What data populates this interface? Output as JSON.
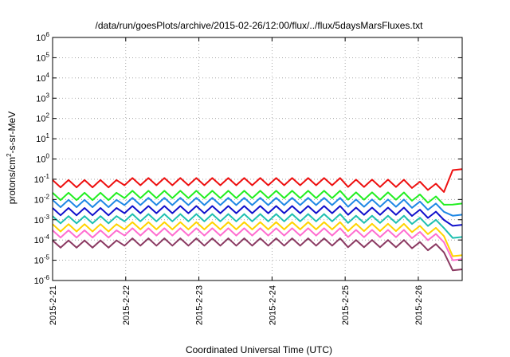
{
  "chart_data": {
    "type": "line",
    "title": "/data/run/goesPlots/archive/2015-02-26/12:00/flux/../flux/5daysMarsFluxes.txt",
    "xlabel": "Coordinated Universal Time (UTC)",
    "ylabel_prefix": "protons/cm",
    "ylabel_sup": "2",
    "ylabel_suffix": "-s-sr-MeV",
    "x_tick_labels": [
      "2015-2-21",
      "2015-2-22",
      "2015-2-23",
      "2015-2-24",
      "2015-2-25",
      "2015-2-26"
    ],
    "y_tick_exponents": [
      -6,
      -5,
      -4,
      -3,
      -2,
      -1,
      0,
      1,
      2,
      3,
      4,
      5,
      6
    ],
    "y_tick_base": "10",
    "xlim_days": [
      0,
      5.6
    ],
    "ylim_log10": [
      -6,
      6
    ],
    "grid": true,
    "x_scale": "linear",
    "y_scale": "log",
    "series": [
      {
        "color": "#ee1111",
        "base_log10": -1.22,
        "end_log10": -0.55
      },
      {
        "color": "#22ee22",
        "base_log10": -1.85,
        "end_log10": -2.25
      },
      {
        "color": "#1e88e5",
        "base_log10": -2.2,
        "end_log10": -2.8
      },
      {
        "color": "#1111cc",
        "base_log10": -2.6,
        "end_log10": -3.3
      },
      {
        "color": "#20c0b0",
        "base_log10": -3.0,
        "end_log10": -3.9
      },
      {
        "color": "#ffd400",
        "base_log10": -3.4,
        "end_log10": -4.8
      },
      {
        "color": "#ff6fd0",
        "base_log10": -3.7,
        "end_log10": -5.0
      },
      {
        "color": "#8b3a62",
        "base_log10": -4.2,
        "end_log10": -5.5
      }
    ]
  }
}
